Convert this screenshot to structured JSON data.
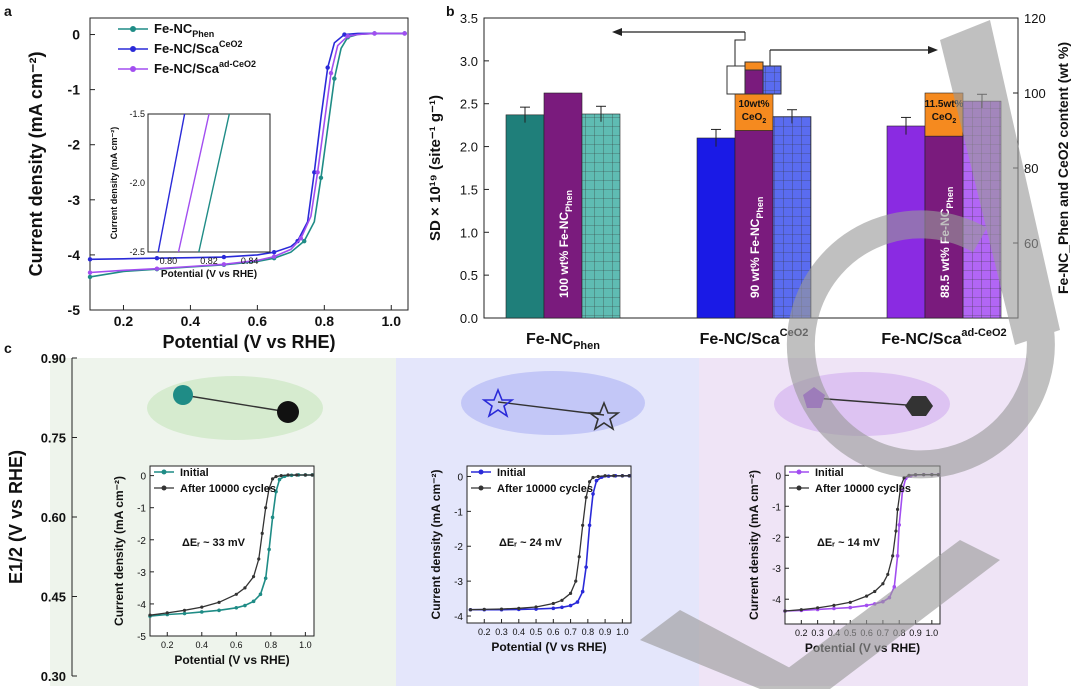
{
  "panel_labels": {
    "a": "a",
    "b": "b",
    "c": "c"
  },
  "colors": {
    "fenc": "#1f8c86",
    "scaceo2": "#2a2ad8",
    "scadceo2": "#a24ef0",
    "fenc_bar": "#1f7f7a",
    "fenc_purple": "#7a1b7d",
    "fenc_light": "#5fbcb3",
    "ceo2_orange": "#f58a1f",
    "sca_bar": "#1a1ae6",
    "sca_light": "#5a6cf0",
    "scad_bar": "#8a2be2",
    "scad_light": "#b266f5",
    "bg1": "#eef4ec",
    "bg2": "#e4e6fb",
    "bg3": "#efe4f6",
    "aged": "#333333"
  },
  "chart_data": [
    {
      "id": "a",
      "type": "line",
      "xlabel": "Potential (V vs RHE)",
      "ylabel": "Current density (mA cm⁻²)",
      "xlim": [
        0.1,
        1.05
      ],
      "ylim": [
        -5,
        0.3
      ],
      "xticks": [
        "0.2",
        "0.4",
        "0.6",
        "0.8",
        "1.0"
      ],
      "yticks": [
        "0",
        "-1",
        "-2",
        "-3",
        "-4",
        "-5"
      ],
      "legend": [
        {
          "name": "Fe-NC",
          "sub": "Phen",
          "sup": ""
        },
        {
          "name": "Fe-NC/Sca",
          "sub": "",
          "sup": "CeO2"
        },
        {
          "name": "Fe-NC/Sca",
          "sub": "",
          "sup": "ad-CeO2"
        }
      ],
      "series": [
        {
          "name": "Fe-NC_Phen",
          "x": [
            0.1,
            0.2,
            0.3,
            0.4,
            0.5,
            0.6,
            0.65,
            0.7,
            0.74,
            0.77,
            0.79,
            0.81,
            0.83,
            0.85,
            0.87,
            0.9,
            0.95,
            1.0,
            1.04
          ],
          "y": [
            -4.4,
            -4.3,
            -4.26,
            -4.22,
            -4.18,
            -4.12,
            -4.06,
            -3.95,
            -3.75,
            -3.4,
            -2.6,
            -1.7,
            -0.8,
            -0.25,
            -0.05,
            0.0,
            0.02,
            0.02,
            0.02
          ]
        },
        {
          "name": "Fe-NC/Sca^CeO2",
          "x": [
            0.1,
            0.2,
            0.3,
            0.4,
            0.5,
            0.6,
            0.65,
            0.7,
            0.72,
            0.75,
            0.77,
            0.79,
            0.81,
            0.83,
            0.86,
            0.9,
            0.95,
            1.0,
            1.04
          ],
          "y": [
            -4.08,
            -4.07,
            -4.06,
            -4.05,
            -4.04,
            -4.0,
            -3.95,
            -3.85,
            -3.75,
            -3.4,
            -2.5,
            -1.5,
            -0.6,
            -0.15,
            0.0,
            0.02,
            0.02,
            0.02,
            0.02
          ]
        },
        {
          "name": "Fe-NC/Sca^ad-CeO2",
          "x": [
            0.1,
            0.2,
            0.3,
            0.4,
            0.5,
            0.6,
            0.65,
            0.7,
            0.73,
            0.76,
            0.78,
            0.8,
            0.82,
            0.84,
            0.87,
            0.9,
            0.95,
            1.0,
            1.04
          ],
          "y": [
            -4.32,
            -4.28,
            -4.25,
            -4.21,
            -4.17,
            -4.1,
            -4.03,
            -3.9,
            -3.7,
            -3.3,
            -2.5,
            -1.6,
            -0.7,
            -0.2,
            -0.03,
            0.0,
            0.02,
            0.02,
            0.02
          ]
        }
      ],
      "inset": {
        "xlabel": "Potential (V vs RHE)",
        "ylabel": "Current density (mA cm⁻²)",
        "xlim": [
          0.79,
          0.85
        ],
        "ylim": [
          -2.5,
          -1.5
        ],
        "xticks": [
          "0.80",
          "0.82",
          "0.84"
        ],
        "yticks": [
          "-1.5",
          "-2.0",
          "-2.5"
        ],
        "series": [
          {
            "name": "Fe-NC/Sca^CeO2",
            "x": [
              0.795,
              0.808
            ],
            "y": [
              -2.5,
              -1.5
            ]
          },
          {
            "name": "Fe-NC/Sca^ad-CeO2",
            "x": [
              0.805,
              0.82
            ],
            "y": [
              -2.5,
              -1.5
            ]
          },
          {
            "name": "Fe-NC_Phen",
            "x": [
              0.815,
              0.83
            ],
            "y": [
              -2.5,
              -1.5
            ]
          }
        ]
      }
    },
    {
      "id": "b",
      "type": "bar",
      "ylabel_left": "SD × 10¹⁹ (site⁻¹ g⁻¹)",
      "ylabel_right": "Fe-NC_Phen and CeO2 content (wt %)",
      "ylim_left": [
        0.0,
        3.5
      ],
      "ylim_right": [
        40,
        120
      ],
      "yticks_left": [
        "0.0",
        "0.5",
        "1.0",
        "1.5",
        "2.0",
        "2.5",
        "3.0",
        "3.5"
      ],
      "yticks_right": [
        "60",
        "80",
        "100",
        "120"
      ],
      "groups": [
        {
          "label": "Fe-NC",
          "sub": "Phen",
          "sup": "",
          "sd": [
            2.37,
            2.38
          ],
          "sd_err": [
            0.09,
            0.09
          ],
          "fenc_wt": 100,
          "ceo2_wt": 0,
          "bar_text": "100 wt% Fe-NC",
          "bar_text_sub": "Phen",
          "ceo2_text": ""
        },
        {
          "label": "Fe-NC/Sca",
          "sub": "",
          "sup": "CeO2",
          "sd": [
            2.1,
            2.35
          ],
          "sd_err": [
            0.1,
            0.08
          ],
          "fenc_wt": 90,
          "ceo2_wt": 10,
          "bar_text": "90 wt% Fe-NC",
          "bar_text_sub": "Phen",
          "ceo2_text": "10wt%"
        },
        {
          "label": "Fe-NC/Sca",
          "sub": "",
          "sup": "ad-CeO2",
          "sd": [
            2.24,
            2.53
          ],
          "sd_err": [
            0.1,
            0.08
          ],
          "fenc_wt": 88.5,
          "ceo2_wt": 11.5,
          "bar_text": "88.5 wt% Fe-NC",
          "bar_text_sub": "Phen",
          "ceo2_text": "11.5wt%"
        }
      ],
      "ceo2_label": "CeO2"
    },
    {
      "id": "c",
      "type": "line",
      "ylabel_main": "E1/2 (V vs RHE)",
      "ylim_main": [
        0.3,
        0.9
      ],
      "yticks_main": [
        "0.90",
        "0.75",
        "0.60",
        "0.45",
        "0.30"
      ],
      "subplots": [
        {
          "id": "c1",
          "delta": "ΔEᵣ ~ 33 mV",
          "legend": [
            "Initial",
            "After 10000 cycles"
          ],
          "xlim": [
            0.1,
            1.05
          ],
          "ylim": [
            -5,
            0.3
          ],
          "xticks": [
            "0.2",
            "0.4",
            "0.6",
            "0.8",
            "1.0"
          ],
          "yticks": [
            "0",
            "-1",
            "-2",
            "-3",
            "-4",
            "-5"
          ],
          "initial": {
            "x": [
              0.1,
              0.2,
              0.3,
              0.4,
              0.5,
              0.6,
              0.65,
              0.7,
              0.74,
              0.77,
              0.79,
              0.81,
              0.83,
              0.85,
              0.88,
              0.92,
              0.96,
              1.0,
              1.04
            ],
            "y": [
              -4.38,
              -4.33,
              -4.3,
              -4.25,
              -4.2,
              -4.12,
              -4.05,
              -3.92,
              -3.7,
              -3.2,
              -2.3,
              -1.3,
              -0.5,
              -0.12,
              -0.02,
              0.01,
              0.02,
              0.02,
              0.02
            ]
          },
          "aged": {
            "x": [
              0.1,
              0.2,
              0.3,
              0.4,
              0.5,
              0.6,
              0.65,
              0.7,
              0.73,
              0.75,
              0.77,
              0.79,
              0.81,
              0.83,
              0.86,
              0.9,
              0.95,
              1.0,
              1.04
            ],
            "y": [
              -4.35,
              -4.28,
              -4.2,
              -4.1,
              -3.95,
              -3.7,
              -3.5,
              -3.15,
              -2.6,
              -1.8,
              -1.0,
              -0.4,
              -0.1,
              -0.03,
              0.0,
              0.02,
              0.02,
              0.02,
              0.02
            ]
          },
          "xlabel": "Potential (V vs RHE)",
          "ylabel": "Current density (mA cm⁻²)"
        },
        {
          "id": "c2",
          "delta": "ΔEᵣ ~ 24 mV",
          "legend": [
            "Initial",
            "After 10000 cycles"
          ],
          "xlim": [
            0.1,
            1.05
          ],
          "ylim": [
            -4.2,
            0.3
          ],
          "xticks": [
            "0.2",
            "0.3",
            "0.4",
            "0.5",
            "0.6",
            "0.7",
            "0.8",
            "0.9",
            "1.0"
          ],
          "yticks": [
            "0",
            "-1",
            "-2",
            "-3",
            "-4"
          ],
          "initial": {
            "x": [
              0.12,
              0.2,
              0.3,
              0.4,
              0.5,
              0.6,
              0.65,
              0.7,
              0.74,
              0.77,
              0.79,
              0.81,
              0.83,
              0.85,
              0.88,
              0.92,
              0.96,
              1.0,
              1.04
            ],
            "y": [
              -3.82,
              -3.82,
              -3.82,
              -3.81,
              -3.8,
              -3.78,
              -3.75,
              -3.7,
              -3.6,
              -3.3,
              -2.6,
              -1.4,
              -0.5,
              -0.12,
              -0.02,
              0.01,
              0.02,
              0.02,
              0.02
            ]
          },
          "aged": {
            "x": [
              0.12,
              0.2,
              0.3,
              0.4,
              0.5,
              0.6,
              0.65,
              0.7,
              0.73,
              0.75,
              0.77,
              0.79,
              0.81,
              0.83,
              0.86,
              0.9,
              0.95,
              1.0,
              1.04
            ],
            "y": [
              -3.82,
              -3.81,
              -3.8,
              -3.78,
              -3.74,
              -3.64,
              -3.55,
              -3.35,
              -3.0,
              -2.3,
              -1.4,
              -0.6,
              -0.15,
              -0.03,
              0.0,
              0.02,
              0.02,
              0.02,
              0.02
            ]
          },
          "xlabel": "Potential (V vs RHE)",
          "ylabel": "Current density (mA cm⁻²)"
        },
        {
          "id": "c3",
          "delta": "ΔEᵣ ~ 14 mV",
          "legend": [
            "Initial",
            "After 10000 cycles"
          ],
          "xlim": [
            0.1,
            1.05
          ],
          "ylim": [
            -4.8,
            0.3
          ],
          "xticks": [
            "0.2",
            "0.3",
            "0.4",
            "0.5",
            "0.6",
            "0.7",
            "0.8",
            "0.9",
            "1.0"
          ],
          "yticks": [
            "0",
            "-1",
            "-2",
            "-3",
            "-4"
          ],
          "initial": {
            "x": [
              0.1,
              0.2,
              0.3,
              0.4,
              0.5,
              0.6,
              0.65,
              0.7,
              0.74,
              0.77,
              0.79,
              0.8,
              0.82,
              0.84,
              0.87,
              0.9,
              0.95,
              1.0,
              1.04
            ],
            "y": [
              -4.38,
              -4.36,
              -4.33,
              -4.3,
              -4.27,
              -4.2,
              -4.15,
              -4.08,
              -3.95,
              -3.6,
              -2.6,
              -1.6,
              -0.5,
              -0.1,
              -0.02,
              0.01,
              0.02,
              0.02,
              0.02
            ]
          },
          "aged": {
            "x": [
              0.1,
              0.2,
              0.3,
              0.4,
              0.5,
              0.6,
              0.65,
              0.7,
              0.73,
              0.76,
              0.78,
              0.79,
              0.81,
              0.83,
              0.86,
              0.9,
              0.95,
              1.0,
              1.04
            ],
            "y": [
              -4.38,
              -4.34,
              -4.28,
              -4.2,
              -4.1,
              -3.9,
              -3.75,
              -3.5,
              -3.2,
              -2.6,
              -1.8,
              -1.1,
              -0.35,
              -0.08,
              0.0,
              0.02,
              0.02,
              0.02,
              0.02
            ]
          },
          "xlabel": "Potential (V vs RHE)",
          "ylabel": "Current density (mA cm⁻²)"
        }
      ]
    }
  ]
}
